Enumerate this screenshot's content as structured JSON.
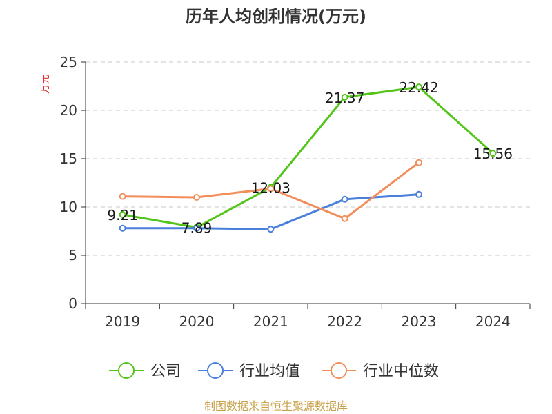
{
  "chart_data": {
    "type": "line",
    "title": "历年人均创利情况(万元)",
    "xlabel": "",
    "ylabel": "万元",
    "categories": [
      "2019",
      "2020",
      "2021",
      "2022",
      "2023",
      "2024"
    ],
    "ylim": [
      0,
      25
    ],
    "yticks": [
      "0",
      "5",
      "10",
      "15",
      "20",
      "25"
    ],
    "grid": "horizontal dashed",
    "legend_position": "bottom",
    "series": [
      {
        "name": "公司",
        "color": "#52c41a",
        "values": [
          9.21,
          7.89,
          12.03,
          21.37,
          22.42,
          15.56
        ],
        "labels": [
          "9.21",
          "7.89",
          "12.03",
          "21.37",
          "22.42",
          "15.56"
        ]
      },
      {
        "name": "行业均值",
        "color": "#4a7fdb",
        "values": [
          7.8,
          7.8,
          7.7,
          10.8,
          11.3,
          null
        ]
      },
      {
        "name": "行业中位数",
        "color": "#f28e5c",
        "values": [
          11.1,
          11.0,
          11.9,
          8.8,
          14.6,
          null
        ]
      }
    ],
    "source": "制图数据来自恒生聚源数据库"
  }
}
